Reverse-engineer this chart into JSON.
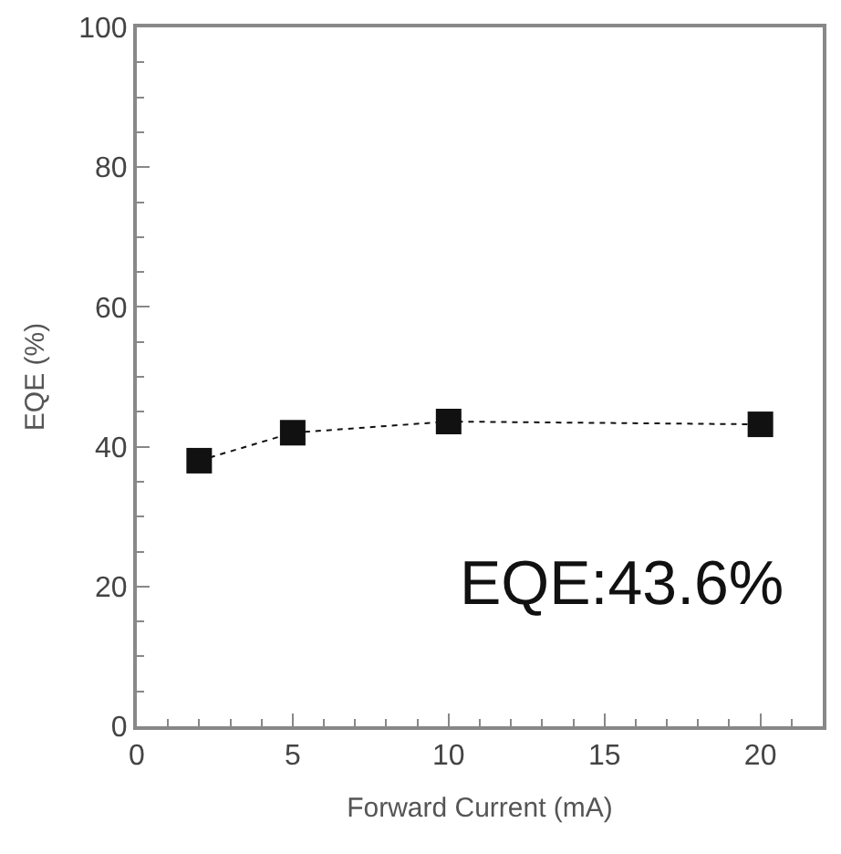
{
  "chart_data": {
    "type": "line",
    "xlabel": "Forward Current (mA)",
    "ylabel": "EQE (%)",
    "x": [
      2,
      5,
      10,
      20
    ],
    "series": [
      {
        "color": "#111111",
        "values": [
          38,
          42,
          43.6,
          43.2
        ]
      }
    ],
    "xlim": [
      0,
      22
    ],
    "xticks": [
      0,
      5,
      10,
      15,
      20
    ],
    "ylim": [
      0,
      100
    ],
    "yticks": [
      0,
      20,
      40,
      60,
      80,
      100
    ],
    "marker": "square",
    "line_style": "dotted",
    "annotations": [
      "EQE:43.6%"
    ]
  }
}
